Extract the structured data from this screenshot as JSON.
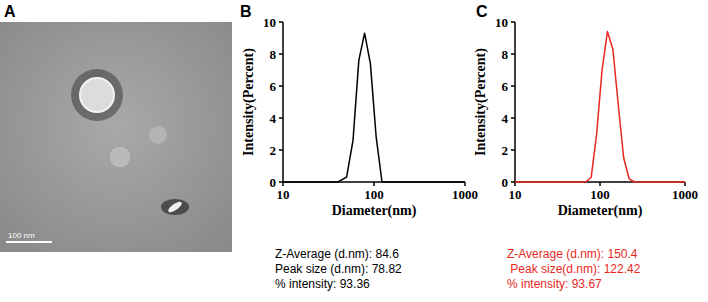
{
  "panel_a": {
    "label": "A",
    "scale_bar": "100 nm"
  },
  "chart_data": [
    {
      "type": "line",
      "title": "B",
      "x_label": "Diameter(nm)",
      "y_label": "Intensity(Percent)",
      "x": [
        10,
        40,
        50,
        58.8,
        68.1,
        78.8,
        91.3,
        105.7,
        122.4,
        1000
      ],
      "values": [
        0,
        0,
        0.3,
        2.6,
        7.6,
        9.3,
        7.4,
        2.8,
        0,
        0
      ],
      "color": "#000000",
      "log": "x",
      "xlim": [
        10,
        1000
      ],
      "xticks": [
        10,
        100,
        1000
      ],
      "ylim": [
        0,
        10
      ],
      "yticks": [
        0,
        2,
        4,
        6,
        8,
        10
      ],
      "annotations": [
        "Z-Average (d.nm): 84.6",
        "Peak size (d.nm): 78.82",
        "% intensity: 93.36"
      ]
    },
    {
      "type": "line",
      "title": "C",
      "x_label": "Diameter(nm)",
      "y_label": "Intensity(Percent)",
      "x": [
        10,
        68.1,
        78.8,
        91.3,
        105.7,
        122.4,
        141.8,
        164.2,
        190.1,
        220.2,
        255,
        1000
      ],
      "values": [
        0,
        0,
        0.3,
        3,
        7,
        9.4,
        8.3,
        4.8,
        1.5,
        0.2,
        0,
        0
      ],
      "color": "#e8281e",
      "log": "x",
      "xlim": [
        10,
        1000
      ],
      "xticks": [
        10,
        100,
        1000
      ],
      "ylim": [
        0,
        10
      ],
      "yticks": [
        0,
        2,
        4,
        6,
        8,
        10
      ],
      "annotations": [
        "Z-Average (d.nm): 150.4",
        " Peak size(d.nm): 122.42",
        "% intensity: 93.67"
      ]
    }
  ]
}
